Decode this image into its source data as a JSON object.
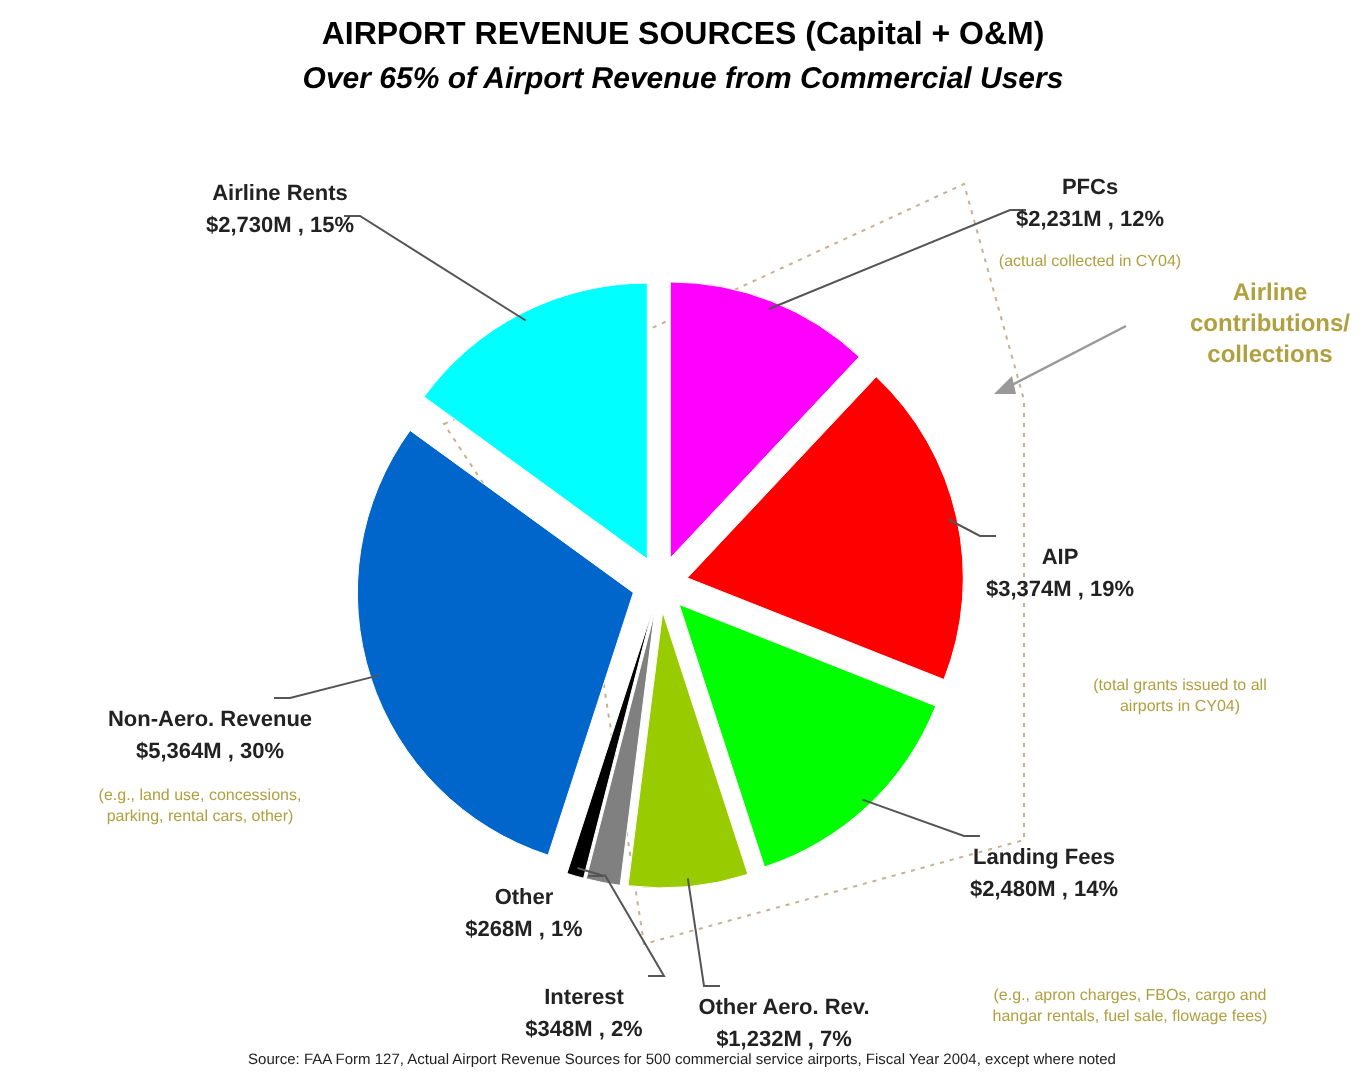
{
  "chart_data": {
    "type": "pie",
    "title": "AIRPORT REVENUE SOURCES (Capital + O&M)",
    "subtitle": "Over 65% of Airport Revenue from Commercial Users",
    "categories": [
      "PFCs",
      "AIP",
      "Landing Fees",
      "Other Aero. Rev.",
      "Interest",
      "Other",
      "Non-Aero. Revenue",
      "Airline Rents"
    ],
    "values": [
      12,
      19,
      14,
      7,
      2,
      1,
      30,
      15
    ],
    "value_labels": [
      "$2,231M , 12%",
      "$3,374M , 19%",
      "$2,480M , 14%",
      "$1,232M , 7%",
      "$348M , 2%",
      "$268M , 1%",
      "$5,364M , 30%",
      "$2,730M , 15%"
    ],
    "colors": [
      "#ff00ff",
      "#ff0000",
      "#00ff00",
      "#99cc00",
      "#808080",
      "#000000",
      "#0066cc",
      "#00ffff"
    ],
    "annotations": [
      "(actual collected in CY04)",
      "Airline\ncontributions/\ncollections",
      "(total grants issued to all\nairports in CY04)",
      "(e.g., apron charges, FBOs, cargo and\nhangar rentals, fuel sale, flowage fees)",
      "(e.g., land use, concessions,\nparking, rental cars, other)",
      "Source: FAA Form 127, Actual Airport Revenue Sources for 500 commercial service airports, Fiscal Year 2004, except where noted"
    ]
  }
}
